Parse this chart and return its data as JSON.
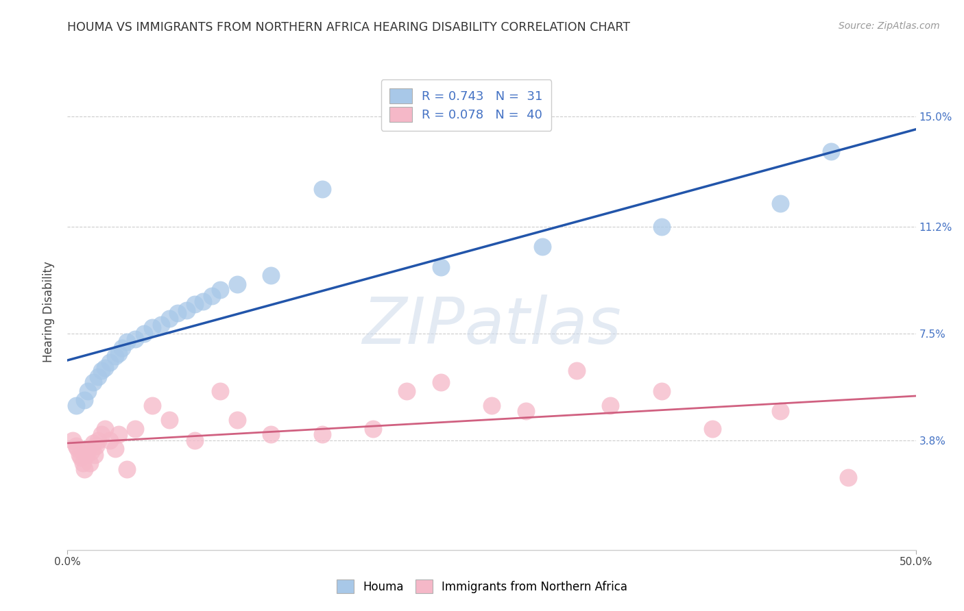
{
  "title": "HOUMA VS IMMIGRANTS FROM NORTHERN AFRICA HEARING DISABILITY CORRELATION CHART",
  "source": "Source: ZipAtlas.com",
  "ylabel": "Hearing Disability",
  "ytick_labels": [
    "3.8%",
    "7.5%",
    "11.2%",
    "15.0%"
  ],
  "ytick_values": [
    0.038,
    0.075,
    0.112,
    0.15
  ],
  "xlim": [
    0.0,
    0.5
  ],
  "ylim": [
    0.0,
    0.165
  ],
  "houma_R": 0.743,
  "houma_N": 31,
  "immigrants_R": 0.078,
  "immigrants_N": 40,
  "houma_color": "#a8c8e8",
  "houma_line_color": "#2255aa",
  "immigrants_color": "#f5b8c8",
  "immigrants_line_color": "#d06080",
  "watermark": "ZIPatlas",
  "houma_x": [
    0.005,
    0.01,
    0.012,
    0.015,
    0.018,
    0.02,
    0.022,
    0.025,
    0.028,
    0.03,
    0.032,
    0.035,
    0.04,
    0.045,
    0.05,
    0.055,
    0.06,
    0.065,
    0.07,
    0.075,
    0.08,
    0.085,
    0.09,
    0.1,
    0.12,
    0.15,
    0.22,
    0.28,
    0.35,
    0.42,
    0.45
  ],
  "houma_y": [
    0.05,
    0.052,
    0.055,
    0.058,
    0.06,
    0.062,
    0.063,
    0.065,
    0.067,
    0.068,
    0.07,
    0.072,
    0.073,
    0.075,
    0.077,
    0.078,
    0.08,
    0.082,
    0.083,
    0.085,
    0.086,
    0.088,
    0.09,
    0.092,
    0.095,
    0.125,
    0.098,
    0.105,
    0.112,
    0.12,
    0.138
  ],
  "immigrants_x": [
    0.003,
    0.005,
    0.006,
    0.007,
    0.008,
    0.009,
    0.01,
    0.011,
    0.012,
    0.013,
    0.014,
    0.015,
    0.016,
    0.017,
    0.018,
    0.02,
    0.022,
    0.025,
    0.028,
    0.03,
    0.035,
    0.04,
    0.05,
    0.06,
    0.075,
    0.09,
    0.1,
    0.12,
    0.15,
    0.18,
    0.2,
    0.22,
    0.25,
    0.27,
    0.3,
    0.32,
    0.35,
    0.38,
    0.42,
    0.46
  ],
  "immigrants_y": [
    0.038,
    0.036,
    0.035,
    0.033,
    0.032,
    0.03,
    0.028,
    0.033,
    0.035,
    0.03,
    0.034,
    0.037,
    0.033,
    0.036,
    0.038,
    0.04,
    0.042,
    0.038,
    0.035,
    0.04,
    0.028,
    0.042,
    0.05,
    0.045,
    0.038,
    0.055,
    0.045,
    0.04,
    0.04,
    0.042,
    0.055,
    0.058,
    0.05,
    0.048,
    0.062,
    0.05,
    0.055,
    0.042,
    0.048,
    0.025
  ]
}
